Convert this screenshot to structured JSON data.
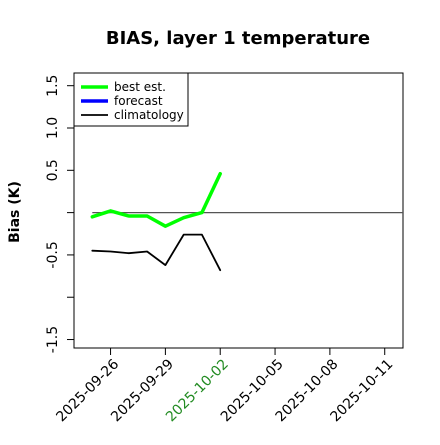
{
  "chart_data": {
    "type": "line",
    "title": "BIAS, layer 1 temperature",
    "xlabel": "",
    "ylabel": "Bias (K)",
    "ylim": [
      -1.6,
      1.65
    ],
    "yticks": [
      -1.5,
      -1.0,
      -0.5,
      0.0,
      0.5,
      1.0,
      1.5
    ],
    "ytick_labels": [
      "-1.5",
      "",
      "-0.5",
      "",
      "0.5",
      "1.0",
      "1.5"
    ],
    "xlim": [
      "2025-09-24",
      "2025-10-12"
    ],
    "xticks": [
      "2025-09-26",
      "2025-09-29",
      "2025-10-02",
      "2025-10-05",
      "2025-10-08",
      "2025-10-11"
    ],
    "highlight_tick": {
      "label": "2025-10-02",
      "color": "#228b22"
    },
    "reference_line": {
      "y": 0.0,
      "color": "#555555",
      "from": "2025-09-25",
      "to": "2025-10-12"
    },
    "legend_position": "upper-left",
    "series": [
      {
        "name": "best est.",
        "color": "#00ff00",
        "line_width": "thick",
        "x": [
          "2025-09-25",
          "2025-09-26",
          "2025-09-27",
          "2025-09-28",
          "2025-09-29",
          "2025-09-30",
          "2025-10-01",
          "2025-10-02"
        ],
        "y": [
          -0.05,
          0.02,
          -0.04,
          -0.04,
          -0.16,
          -0.06,
          0.0,
          0.46
        ]
      },
      {
        "name": "forecast",
        "color": "#0000ff",
        "line_width": "thick",
        "x": [],
        "y": []
      },
      {
        "name": "climatology",
        "color": "#000000",
        "line_width": "thin",
        "x": [
          "2025-09-25",
          "2025-09-26",
          "2025-09-27",
          "2025-09-28",
          "2025-09-29",
          "2025-09-30",
          "2025-10-01",
          "2025-10-02"
        ],
        "y": [
          -0.45,
          -0.46,
          -0.48,
          -0.46,
          -0.62,
          -0.26,
          -0.26,
          -0.68
        ]
      }
    ]
  }
}
